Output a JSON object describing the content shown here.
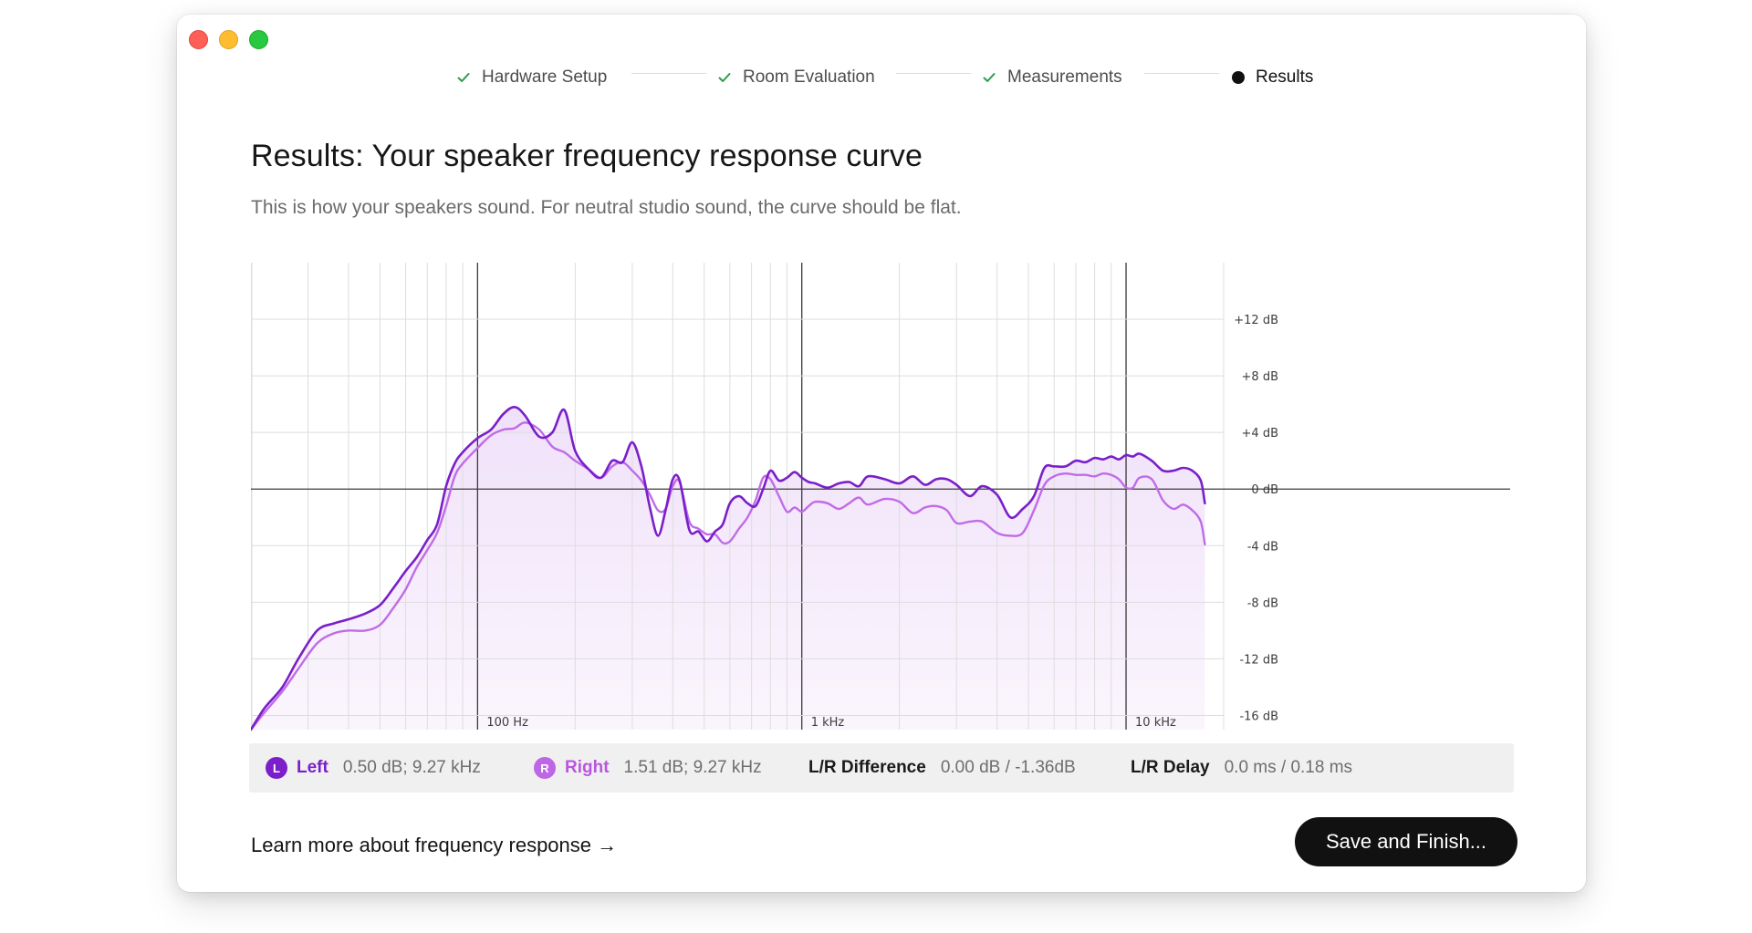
{
  "window": {
    "controls": [
      "close",
      "minimize",
      "zoom"
    ]
  },
  "stepper": {
    "steps": [
      {
        "label": "Hardware Setup",
        "status": "done",
        "icon": "check-icon"
      },
      {
        "label": "Room Evaluation",
        "status": "done",
        "icon": "check-icon"
      },
      {
        "label": "Measurements",
        "status": "done",
        "icon": "check-icon"
      },
      {
        "label": "Results",
        "status": "active",
        "icon": "bullet-icon"
      }
    ]
  },
  "main": {
    "title": "Results: Your speaker frequency response curve",
    "subtitle": "This is how your speakers sound. For neutral studio sound, the curve should be flat."
  },
  "chart_data": {
    "type": "line",
    "x_scale": "log",
    "xlim": [
      20,
      20000
    ],
    "ylim": [
      -17,
      16
    ],
    "xticks": [
      {
        "value": 100,
        "label": "100 Hz"
      },
      {
        "value": 1000,
        "label": "1 kHz"
      },
      {
        "value": 10000,
        "label": "10 kHz"
      }
    ],
    "yticks": [
      {
        "value": 12,
        "label": "+12 dB"
      },
      {
        "value": 8,
        "label": "+8 dB"
      },
      {
        "value": 4,
        "label": "+4 dB"
      },
      {
        "value": 0,
        "label": "0 dB"
      },
      {
        "value": -4,
        "label": "-4 dB"
      },
      {
        "value": -8,
        "label": "-8 dB"
      },
      {
        "value": -12,
        "label": "-12 dB"
      },
      {
        "value": -16,
        "label": "-16 dB"
      }
    ],
    "grid": true,
    "colors": {
      "left": "#7a1fc9",
      "right": "#c06be8",
      "fill": "#f4e9fb"
    },
    "series": [
      {
        "key": "left",
        "x": [
          20,
          22,
          25,
          28,
          32,
          36,
          40,
          45,
          50,
          55,
          60,
          65,
          70,
          75,
          80,
          85,
          90,
          100,
          110,
          120,
          130,
          140,
          155,
          170,
          185,
          200,
          220,
          240,
          260,
          280,
          300,
          320,
          340,
          360,
          380,
          400,
          420,
          450,
          480,
          510,
          540,
          570,
          600,
          640,
          680,
          720,
          760,
          800,
          850,
          900,
          950,
          1000,
          1050,
          1100,
          1200,
          1300,
          1400,
          1500,
          1600,
          1800,
          2000,
          2200,
          2400,
          2600,
          2800,
          3000,
          3300,
          3600,
          4000,
          4400,
          4800,
          5200,
          5600,
          6000,
          6500,
          7000,
          7500,
          8000,
          8500,
          9000,
          9500,
          10000,
          10500,
          11000,
          12000,
          13000,
          14000,
          15000,
          16000,
          17000,
          17500
        ],
        "y": [
          -17,
          -15.5,
          -14,
          -12,
          -10,
          -9.5,
          -9.2,
          -8.8,
          -8.2,
          -7,
          -5.8,
          -4.8,
          -3.6,
          -2.5,
          0.2,
          1.8,
          2.6,
          3.6,
          4.2,
          5.3,
          5.8,
          5.2,
          3.7,
          4.0,
          5.6,
          2.7,
          1.4,
          0.8,
          2.0,
          1.9,
          3.3,
          1.6,
          -1.3,
          -3.3,
          -1.5,
          0.7,
          0.6,
          -2.9,
          -3.0,
          -3.7,
          -3.0,
          -2.5,
          -1.0,
          -0.5,
          -1.0,
          -1.2,
          0.0,
          1.3,
          0.6,
          0.8,
          1.2,
          0.8,
          0.5,
          0.4,
          0.1,
          0.4,
          0.5,
          0.2,
          0.9,
          0.7,
          0.4,
          0.9,
          0.3,
          0.7,
          0.7,
          0.3,
          -0.5,
          0.2,
          -0.4,
          -2.0,
          -1.4,
          -0.5,
          1.5,
          1.6,
          1.6,
          2.0,
          1.9,
          2.2,
          2.1,
          2.3,
          2.1,
          2.4,
          2.3,
          2.5,
          2.0,
          1.3,
          1.3,
          1.5,
          1.3,
          0.6,
          -1.0
        ]
      },
      {
        "key": "right",
        "x": [
          20,
          22,
          25,
          28,
          32,
          36,
          40,
          45,
          50,
          55,
          60,
          65,
          70,
          75,
          80,
          85,
          90,
          100,
          110,
          120,
          130,
          140,
          155,
          170,
          185,
          200,
          220,
          240,
          260,
          280,
          300,
          320,
          340,
          360,
          380,
          400,
          420,
          450,
          480,
          510,
          540,
          570,
          600,
          640,
          680,
          720,
          760,
          800,
          850,
          900,
          950,
          1000,
          1050,
          1100,
          1200,
          1300,
          1400,
          1500,
          1600,
          1800,
          2000,
          2200,
          2400,
          2600,
          2800,
          3000,
          3300,
          3600,
          4000,
          4400,
          4800,
          5200,
          5600,
          6000,
          6500,
          7000,
          7500,
          8000,
          8500,
          9000,
          9500,
          10000,
          10500,
          11000,
          12000,
          13000,
          14000,
          15000,
          16000,
          17000,
          17500
        ],
        "y": [
          -17,
          -15.8,
          -14.3,
          -12.7,
          -10.9,
          -10.2,
          -10.0,
          -10.0,
          -9.6,
          -8.4,
          -7.1,
          -5.5,
          -4.3,
          -3.1,
          -1.2,
          0.9,
          1.8,
          2.9,
          3.8,
          4.2,
          4.3,
          4.7,
          4.2,
          3.0,
          2.6,
          2.0,
          1.4,
          0.8,
          1.6,
          1.9,
          1.3,
          0.6,
          -0.4,
          -1.5,
          -1.4,
          0.2,
          0.5,
          -2.3,
          -2.8,
          -3.2,
          -3.2,
          -3.8,
          -3.7,
          -2.8,
          -2.0,
          -0.8,
          0.8,
          0.7,
          -0.5,
          -1.6,
          -1.3,
          -1.6,
          -1.2,
          -0.9,
          -1.0,
          -1.4,
          -1.0,
          -0.6,
          -1.1,
          -0.7,
          -0.9,
          -1.7,
          -1.3,
          -1.2,
          -1.5,
          -2.4,
          -2.3,
          -2.3,
          -3.1,
          -3.3,
          -3.1,
          -1.5,
          0.3,
          0.9,
          1.1,
          1.0,
          1.0,
          0.9,
          1.1,
          1.0,
          0.7,
          0.1,
          0.1,
          0.8,
          0.7,
          -0.8,
          -1.4,
          -1.1,
          -1.5,
          -2.3,
          -3.9
        ]
      }
    ]
  },
  "stats": {
    "left": {
      "badge": "L",
      "label": "Left",
      "value": "0.50 dB; 9.27 kHz"
    },
    "right": {
      "badge": "R",
      "label": "Right",
      "value": "1.51 dB; 9.27 kHz"
    },
    "difference": {
      "label": "L/R Difference",
      "value": "0.00 dB / -1.36dB"
    },
    "delay": {
      "label": "L/R Delay",
      "value": "0.0 ms / 0.18 ms"
    }
  },
  "footer": {
    "learn_more": "Learn more about frequency response →",
    "save_label": "Save and Finish..."
  }
}
